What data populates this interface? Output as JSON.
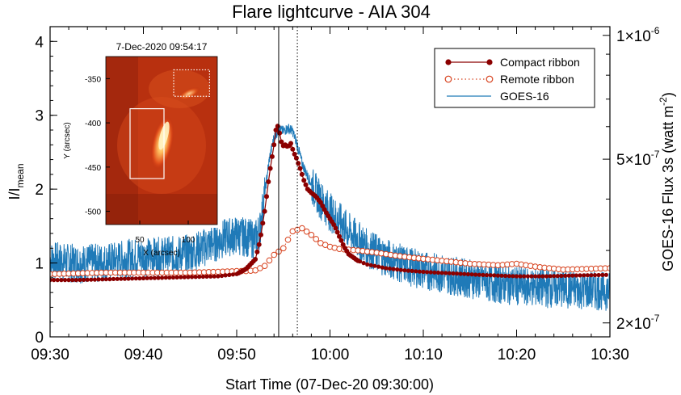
{
  "chart_data": {
    "type": "line",
    "title": "Flare lightcurve - AIA 304",
    "xlabel": "Start Time (07-Dec-20 09:30:00)",
    "ylabel_main": "I/I",
    "ylabel_sub": "mean",
    "y2label_main": "GOES-16 Flux 3s (watt m",
    "y2label_sup": "-2",
    "y2label_end": ")",
    "xlim_minutes": [
      0,
      60
    ],
    "x_tick_labels": [
      "09:30",
      "09:40",
      "09:50",
      "10:00",
      "10:10",
      "10:20",
      "10:30"
    ],
    "ylim": [
      0,
      4.2
    ],
    "y_ticks": [
      0,
      1,
      2,
      3,
      4
    ],
    "y_tick_labels": [
      "0",
      "1",
      "2",
      "3",
      "4"
    ],
    "y2_scale": "log",
    "y2lim": [
      1.85e-07,
      1.05e-06
    ],
    "y2_ticks": [
      2e-07,
      5e-07,
      1e-06
    ],
    "y2_tick_mantissa": [
      "2",
      "5",
      "1"
    ],
    "y2_tick_exponent": [
      "-7",
      "-7",
      "-6"
    ],
    "vlines": [
      {
        "x": 24.5,
        "style": "solid"
      },
      {
        "x": 26.5,
        "style": "dotted"
      }
    ],
    "legend": {
      "position": "top-right",
      "entries": [
        "Compact ribbon",
        "Remote ribbon",
        "GOES-16"
      ]
    },
    "series": [
      {
        "name": "Compact ribbon",
        "color": "#8b0000",
        "marker": "filled-circle",
        "axis": "left",
        "x": [
          0,
          3,
          6,
          9,
          12,
          15,
          18,
          20,
          21,
          22,
          22.5,
          23,
          23.5,
          24,
          24.3,
          24.6,
          24.9,
          25.2,
          25.5,
          25.8,
          26.1,
          26.4,
          26.8,
          27.2,
          27.6,
          28,
          28.5,
          29,
          29.5,
          30,
          30.5,
          31,
          31.5,
          32,
          33,
          34,
          36,
          38,
          40,
          43,
          46,
          50,
          53,
          56,
          60
        ],
        "y": [
          0.77,
          0.77,
          0.78,
          0.79,
          0.8,
          0.81,
          0.82,
          0.85,
          0.92,
          1.05,
          1.3,
          1.7,
          2.2,
          2.6,
          2.9,
          2.76,
          2.58,
          2.6,
          2.57,
          2.62,
          2.5,
          2.42,
          2.28,
          2.12,
          2.0,
          1.95,
          1.9,
          1.82,
          1.7,
          1.6,
          1.5,
          1.36,
          1.22,
          1.12,
          1.03,
          0.98,
          0.93,
          0.9,
          0.88,
          0.86,
          0.84,
          0.82,
          0.82,
          0.83,
          0.84
        ]
      },
      {
        "name": "Remote ribbon",
        "color": "#d7421e",
        "marker": "open-circle",
        "axis": "left",
        "x": [
          0,
          3,
          6,
          9,
          12,
          15,
          18,
          20,
          21,
          22,
          23,
          24,
          25,
          26,
          27,
          28,
          29,
          30,
          31,
          33,
          35,
          37,
          39,
          42,
          45,
          48,
          50,
          52,
          55,
          60
        ],
        "y": [
          0.85,
          0.86,
          0.87,
          0.87,
          0.87,
          0.87,
          0.88,
          0.89,
          0.89,
          0.9,
          0.96,
          1.11,
          1.2,
          1.43,
          1.47,
          1.38,
          1.27,
          1.22,
          1.19,
          1.17,
          1.14,
          1.1,
          1.07,
          1.03,
          0.99,
          0.97,
          0.99,
          0.95,
          0.91,
          0.93
        ]
      },
      {
        "name": "GOES-16",
        "color": "#1f7ab8",
        "marker": "none",
        "axis": "right",
        "x": [
          0,
          3,
          6,
          9,
          12,
          15,
          17,
          19,
          20,
          21,
          22,
          22.5,
          23,
          23.5,
          24,
          24.5,
          25,
          25.5,
          26,
          26.5,
          27,
          27.5,
          28,
          29,
          30,
          32,
          34,
          36,
          38,
          40,
          44,
          48,
          52,
          56,
          60
        ],
        "y": [
          2.85e-07,
          2.8e-07,
          2.82e-07,
          2.9e-07,
          2.92e-07,
          2.96e-07,
          3.1e-07,
          3.25e-07,
          3.28e-07,
          3.25e-07,
          3.2e-07,
          3.4e-07,
          4.1e-07,
          5e-07,
          5.65e-07,
          5.9e-07,
          5.85e-07,
          5.95e-07,
          5.85e-07,
          5.4e-07,
          4.9e-07,
          4.6e-07,
          4.35e-07,
          4e-07,
          3.75e-07,
          3.35e-07,
          3.05e-07,
          2.9e-07,
          2.78e-07,
          2.7e-07,
          2.6e-07,
          2.5e-07,
          2.45e-07,
          2.42e-07,
          2.4e-07
        ]
      }
    ],
    "inset": {
      "title": "7-Dec-2020 09:54:17",
      "xlabel": "X (arcsec)",
      "ylabel": "Y (arcsec)",
      "xlim": [
        15,
        130
      ],
      "ylim": [
        -515,
        -325
      ],
      "x_ticks": [
        50,
        100
      ],
      "x_tick_labels": [
        "50",
        "100"
      ],
      "y_ticks": [
        -350,
        -400,
        -450,
        -500
      ],
      "y_tick_labels": [
        "-350",
        "-400",
        "-450",
        "-500"
      ],
      "boxes": [
        {
          "style": "solid",
          "x": [
            40,
            75
          ],
          "y": [
            -463,
            -384
          ]
        },
        {
          "style": "dotted",
          "x": [
            85,
            122
          ],
          "y": [
            -370,
            -340
          ]
        }
      ]
    }
  }
}
